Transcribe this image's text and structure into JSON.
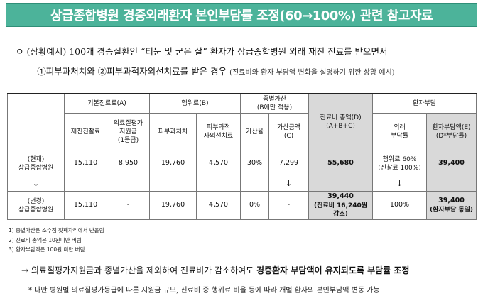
{
  "title": "상급종합병원 경증외래환자 본인부담률 조정(60→100%) 관련 참고자료",
  "intro": {
    "line1": "ㅇ (상황예시) 100개 경증질환인 “티눈 및 굳은 살” 환자가 상급종합병원 외래 재진 진료를 받으면서",
    "line2_main": "- ①피부과처치와 ②피부과적자외선치료를 받은 경우",
    "line2_note": "(진료비와 환자 부담액 변화을 설명하기 위한 상황 예시)"
  },
  "table": {
    "groups": {
      "basic": "기본진료료(A)",
      "action": "행위료(B)",
      "surcharge_line1": "종별가산",
      "surcharge_line2": "(B에만 적용)",
      "total_line1": "진료비 총액(D)",
      "total_line2": "(A+B+C)",
      "patient": "환자부담"
    },
    "subheaders": {
      "revisit": "재진진찰료",
      "support_1": "의료질평가",
      "support_2": "지원금",
      "support_3": "(1등급)",
      "derm_treat": "피부과처치",
      "uv_1": "피부과적",
      "uv_2": "자외선치료",
      "rate": "가산율",
      "amount_1": "가산금액",
      "amount_2": "(C)",
      "burden_rate_1": "외래",
      "burden_rate_2": "부담률",
      "burden_amt_1": "환자부담액(E)",
      "burden_amt_2": "(D*부담률)"
    },
    "current": {
      "label_1": "(현재)",
      "label_2": "상급종합병원",
      "revisit": "15,110",
      "support": "8,950",
      "derm_treat": "19,760",
      "uv": "4,570",
      "rate": "30%",
      "amount": "7,299",
      "total": "55,680",
      "burden_rate_1": "행위료 60%",
      "burden_rate_2": "(진찰료 100%)",
      "burden_amt": "39,400"
    },
    "arrow": "↓",
    "changed": {
      "label_1": "(변경)",
      "label_2": "상급종합병원",
      "revisit": "15,110",
      "support": "-",
      "derm_treat": "19,760",
      "uv": "4,570",
      "rate": "0%",
      "amount": "-",
      "total_1": "39,440",
      "total_2": "(진료비 16,240원 감소)",
      "burden_rate": "100%",
      "burden_amt_1": "39,400",
      "burden_amt_2": "(환자부담 동일)"
    }
  },
  "notes": [
    "1) 종별가산은 소수점 첫째자리에서 반올림",
    "2) 진료비 총액은 10원미만 버림",
    "3) 환자부담액은 100원 미만 버림"
  ],
  "conclusion_prefix": "→ 의료질평가지원금과 종별가산을 제외하여 진료비가 감소하여도 ",
  "conclusion_bold": "경증환자 부담액이 유지되도록 부담률 조정",
  "footnote": "* 다만 병원별 의료질평가등급에 따른 지원금 규모, 진료비 중 행위료 비율 등에 따라 개별 환자의 본인부담액 변동 가능"
}
